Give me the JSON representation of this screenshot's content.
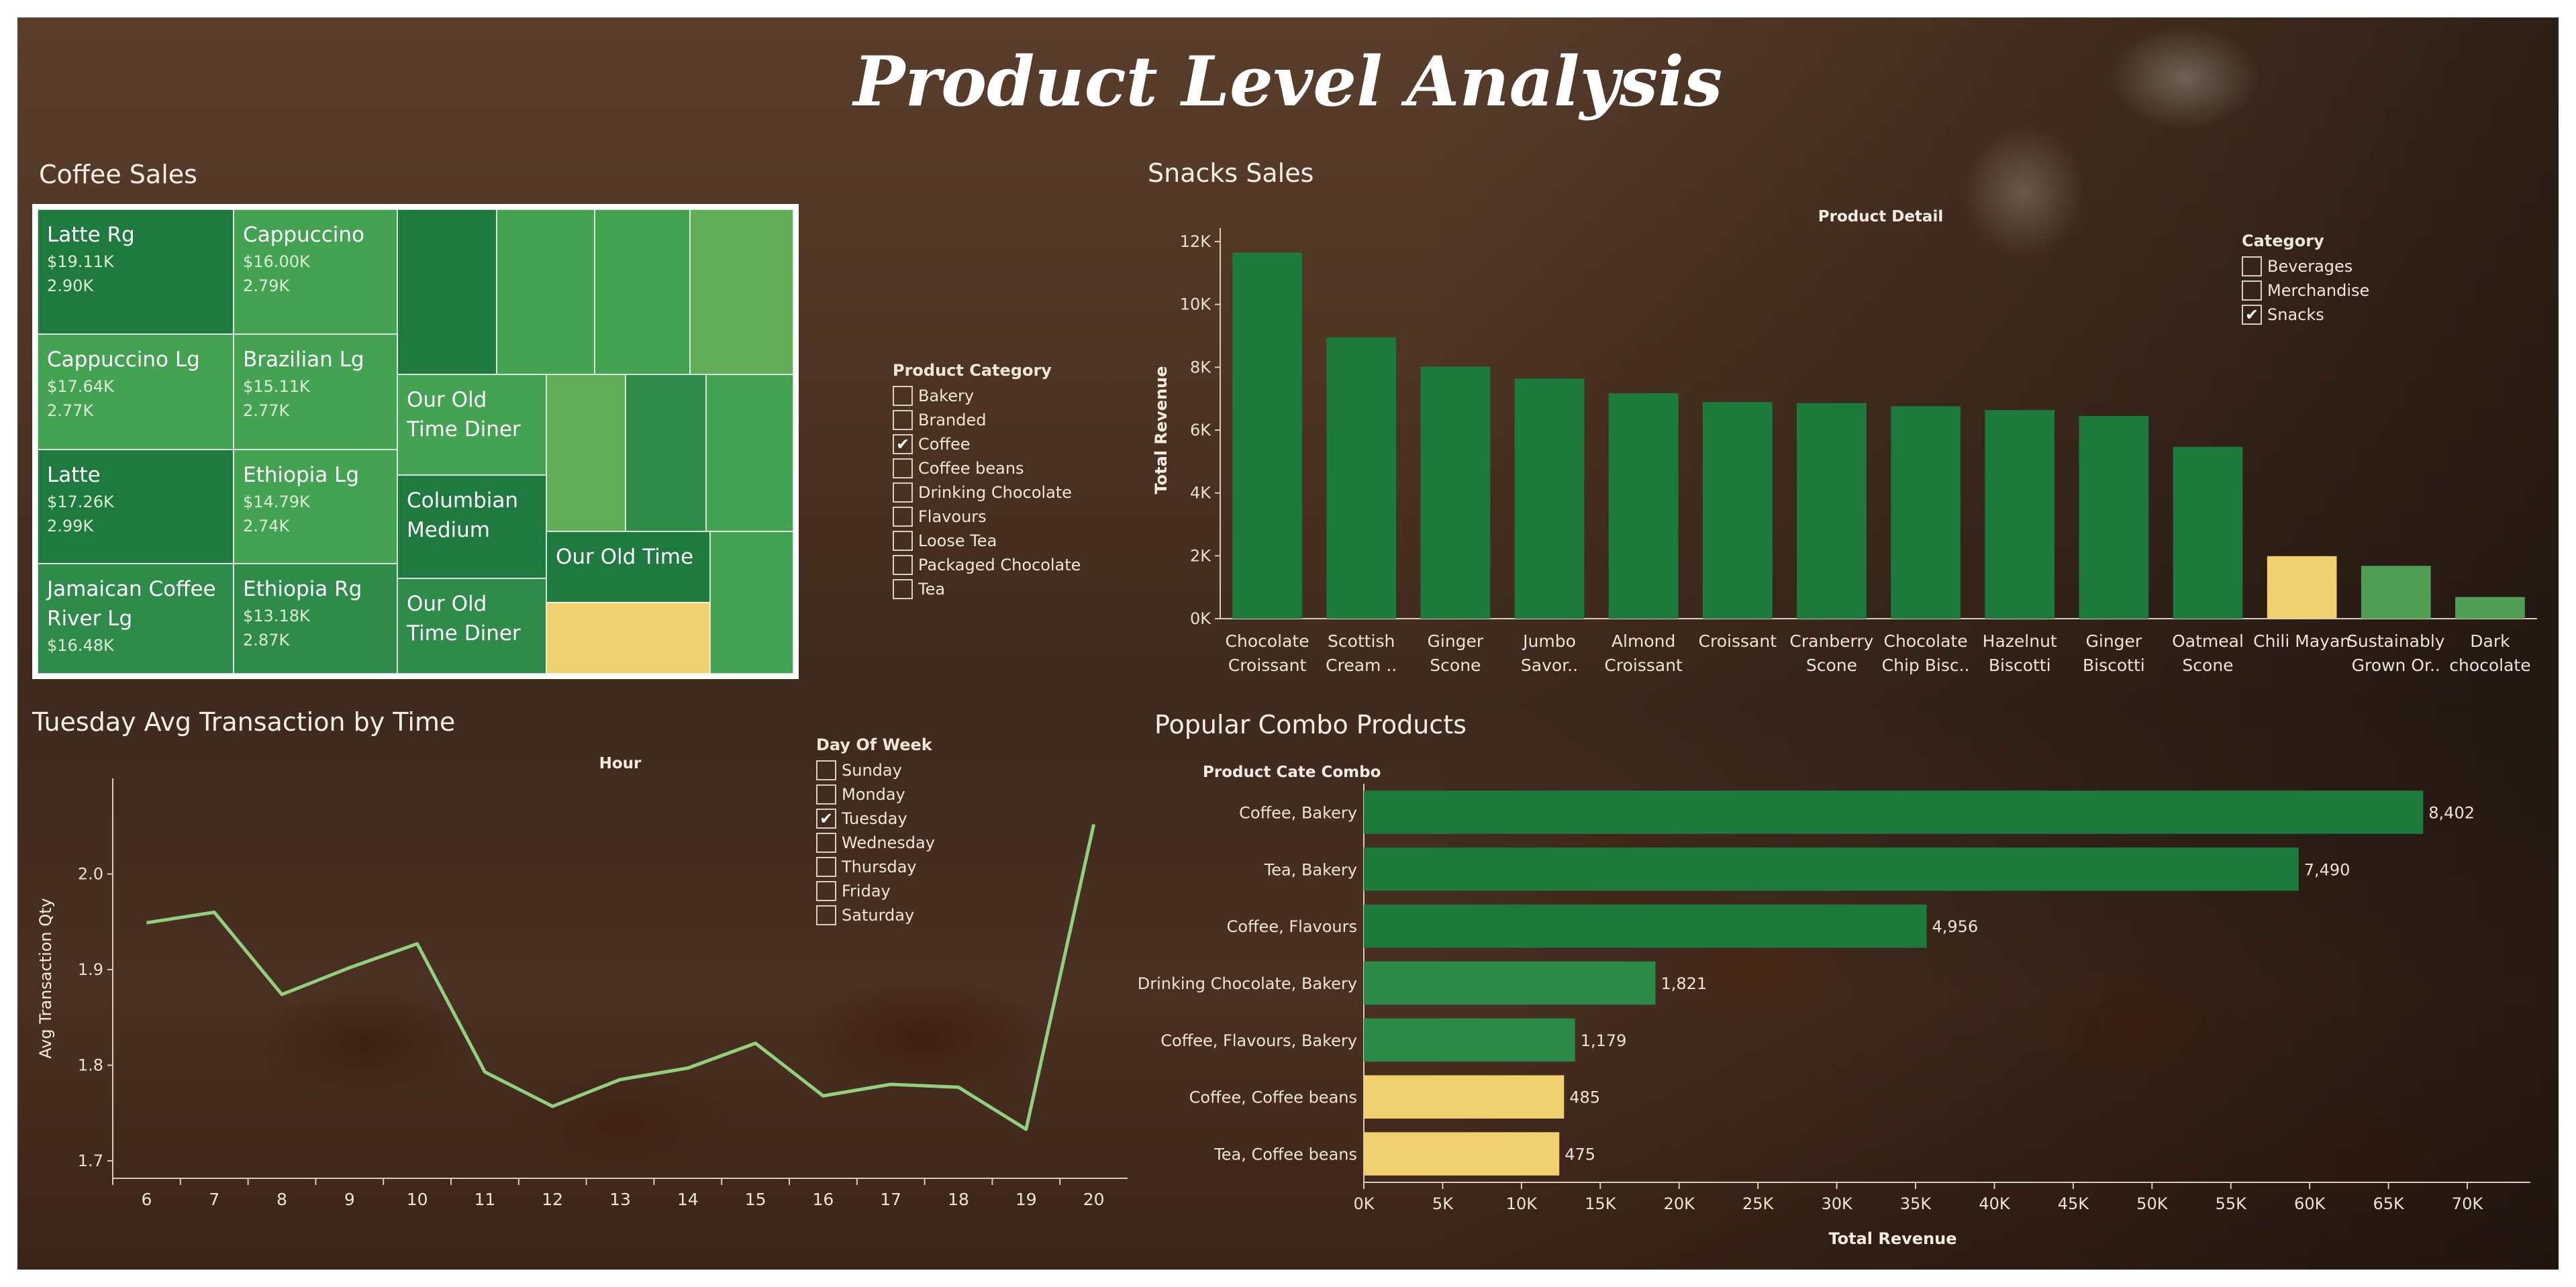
{
  "title": "Product Level Analysis",
  "coffee_sales": {
    "title": "Coffee Sales",
    "items": [
      {
        "name": "Latte Rg",
        "revenue": "$19.11K",
        "qty": "2.90K"
      },
      {
        "name": "Cappuccino",
        "revenue": "$16.00K",
        "qty": "2.79K"
      },
      {
        "name": "Cappuccino Lg",
        "revenue": "$17.64K",
        "qty": "2.77K"
      },
      {
        "name": "Brazilian Lg",
        "revenue": "$15.11K",
        "qty": "2.77K"
      },
      {
        "name": "Latte",
        "revenue": "$17.26K",
        "qty": "2.99K"
      },
      {
        "name": "Ethiopia Lg",
        "revenue": "$14.79K",
        "qty": "2.74K"
      },
      {
        "name": "Jamaican Coffee River Lg",
        "revenue": "$16.48K",
        "qty": ""
      },
      {
        "name": "Ethiopia Rg",
        "revenue": "$13.18K",
        "qty": "2.87K"
      },
      {
        "name": "Our Old Time Diner",
        "revenue": "",
        "qty": ""
      },
      {
        "name": "Columbian Medium",
        "revenue": "",
        "qty": ""
      },
      {
        "name": "Our Old Time",
        "revenue": "",
        "qty": ""
      },
      {
        "name": "Our Old Time Diner",
        "revenue": "",
        "qty": ""
      }
    ],
    "colors": {
      "dark": "#1f7a40",
      "mid": "#2e8b4a",
      "light": "#43a352",
      "lighter": "#62ad58",
      "highlight": "#f1d06f"
    }
  },
  "product_category_filter": {
    "title": "Product Category",
    "options": [
      {
        "label": "Bakery",
        "checked": false
      },
      {
        "label": "Branded",
        "checked": false
      },
      {
        "label": "Coffee",
        "checked": true
      },
      {
        "label": "Coffee beans",
        "checked": false
      },
      {
        "label": "Drinking Chocolate",
        "checked": false
      },
      {
        "label": "Flavours",
        "checked": false
      },
      {
        "label": "Loose Tea",
        "checked": false
      },
      {
        "label": "Packaged Chocolate",
        "checked": false
      },
      {
        "label": "Tea",
        "checked": false
      }
    ]
  },
  "snacks_filter": {
    "title": "Category",
    "options": [
      {
        "label": "Beverages",
        "checked": false
      },
      {
        "label": "Merchandise",
        "checked": false
      },
      {
        "label": "Snacks",
        "checked": true
      }
    ]
  },
  "day_filter": {
    "title": "Day Of Week",
    "options": [
      {
        "label": "Sunday",
        "checked": false
      },
      {
        "label": "Monday",
        "checked": false
      },
      {
        "label": "Tuesday",
        "checked": true
      },
      {
        "label": "Wednesday",
        "checked": false
      },
      {
        "label": "Thursday",
        "checked": false
      },
      {
        "label": "Friday",
        "checked": false
      },
      {
        "label": "Saturday",
        "checked": false
      }
    ]
  },
  "check_mark": "✔",
  "chart_data": [
    {
      "type": "bar",
      "title": "Snacks Sales",
      "header": "Product Detail",
      "ylabel": "Total Revenue",
      "categories": [
        [
          "Chocolate",
          "Croissant"
        ],
        [
          "Scottish",
          "Cream .."
        ],
        [
          "Ginger",
          "Scone"
        ],
        [
          "Jumbo",
          "Savor.."
        ],
        [
          "Almond",
          "Croissant"
        ],
        [
          "Croissant"
        ],
        [
          "Cranberry",
          "Scone"
        ],
        [
          "Chocolate",
          "Chip Bisc.."
        ],
        [
          "Hazelnut",
          "Biscotti"
        ],
        [
          "Ginger",
          "Biscotti"
        ],
        [
          "Oatmeal",
          "Scone"
        ],
        [
          "Chili Mayan"
        ],
        [
          "Sustainably",
          "Grown Or.."
        ],
        [
          "Dark",
          "chocolate"
        ]
      ],
      "values": [
        11650,
        8950,
        8020,
        7640,
        7170,
        6890,
        6860,
        6760,
        6640,
        6450,
        5470,
        1990,
        1680,
        690
      ],
      "bar_colors": [
        "#1b7a3c",
        "#1b7a3c",
        "#1b7a3c",
        "#1b7a3c",
        "#1b7a3c",
        "#1b7a3c",
        "#1b7a3c",
        "#1b7a3c",
        "#1b7a3c",
        "#1b7a3c",
        "#1b7a3c",
        "#f1d06f",
        "#4f9e53",
        "#4f9e53"
      ],
      "yticks": [
        "0K",
        "2K",
        "4K",
        "6K",
        "8K",
        "10K",
        "12K"
      ],
      "ylim": [
        0,
        12000
      ]
    },
    {
      "type": "line",
      "title": "Tuesday Avg Transaction by Time",
      "header": "Hour",
      "ylabel": "Avg Transaction Qty",
      "x": [
        6,
        7,
        8,
        9,
        10,
        11,
        12,
        13,
        14,
        15,
        16,
        17,
        18,
        19,
        20
      ],
      "values": [
        1.949,
        1.96,
        1.874,
        1.902,
        1.927,
        1.793,
        1.757,
        1.785,
        1.797,
        1.823,
        1.768,
        1.78,
        1.777,
        1.733,
        2.052
      ],
      "yticks": [
        "1.7",
        "1.8",
        "1.9",
        "2.0"
      ],
      "ylim": [
        1.7,
        2.1
      ],
      "line_color": "#8fd17e"
    },
    {
      "type": "bar",
      "orientation": "horizontal",
      "title": "Popular Combo Products",
      "header": "Product Cate Combo",
      "xlabel": "Total Revenue",
      "categories": [
        "Coffee, Bakery",
        "Tea, Bakery",
        "Coffee, Flavours",
        "Drinking Chocolate, Bakery",
        "Coffee, Flavours, Bakery",
        "Coffee, Coffee beans",
        "Tea, Coffee beans"
      ],
      "values": [
        67200,
        59300,
        35700,
        18500,
        13400,
        12700,
        12400
      ],
      "value_labels": [
        "8,402",
        "7,490",
        "4,956",
        "1,821",
        "1,179",
        "485",
        "475"
      ],
      "bar_colors": [
        "#1b7a3c",
        "#1b7a3c",
        "#1b7a3c",
        "#2b8a47",
        "#2b8a47",
        "#f1d06f",
        "#f1d06f"
      ],
      "xticks": [
        "0K",
        "5K",
        "10K",
        "15K",
        "20K",
        "25K",
        "30K",
        "35K",
        "40K",
        "45K",
        "50K",
        "55K",
        "60K",
        "65K",
        "70K"
      ],
      "xlim": [
        0,
        74000
      ]
    }
  ]
}
